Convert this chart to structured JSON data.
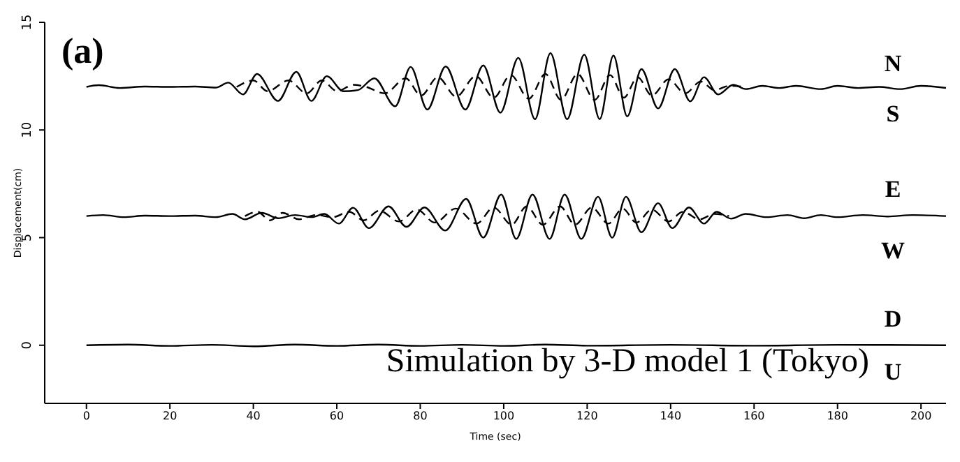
{
  "chart_data": {
    "type": "line",
    "xlabel": "Time (sec)",
    "ylabel": "Displacement(cm)",
    "xlim": [
      -10,
      206
    ],
    "xticks": [
      0,
      20,
      40,
      60,
      80,
      100,
      120,
      140,
      160,
      180,
      200
    ],
    "ylim": [
      -2.7,
      15
    ],
    "yticks": [
      0,
      5,
      10,
      15
    ],
    "series": [
      {
        "color": "#000000",
        "line_style": "solid",
        "x": [
          0,
          3,
          8,
          14,
          20,
          26,
          31,
          34,
          37.5,
          40.9,
          45.9,
          50.3,
          53.9,
          57.6,
          61.6,
          65,
          69,
          74,
          77.7,
          81.7,
          86.1,
          90.8,
          95.1,
          99.2,
          103.5,
          107.5,
          111.2,
          115.2,
          119.3,
          123,
          126.3,
          129.6,
          133,
          137,
          141,
          144.7,
          148,
          151.4,
          155,
          158,
          162,
          166,
          170,
          176,
          180,
          185,
          190,
          195,
          200,
          206
        ],
        "values": [
          12.0,
          12.08,
          11.95,
          12.02,
          12.0,
          12.02,
          11.97,
          12.2,
          11.65,
          12.6,
          11.35,
          12.7,
          11.35,
          12.5,
          11.8,
          11.85,
          12.4,
          11.1,
          12.93,
          10.95,
          12.95,
          10.95,
          13.0,
          10.8,
          13.35,
          10.5,
          13.57,
          10.5,
          13.5,
          10.5,
          13.46,
          10.63,
          12.83,
          11.0,
          12.83,
          11.33,
          12.45,
          11.65,
          12.1,
          11.9,
          12.05,
          11.95,
          12.05,
          11.9,
          12.05,
          11.95,
          12.0,
          11.9,
          12.05,
          11.95
        ]
      },
      {
        "color": "#000000",
        "line_style": "dashed",
        "x": [
          36,
          40,
          43.4,
          48.4,
          52.8,
          56.4,
          60.1,
          64,
          67,
          71.5,
          76.5,
          80.2,
          84.2,
          88.6,
          93.3,
          97.6,
          101.7,
          106,
          110,
          113.7,
          117.7,
          121.8,
          125.5,
          128.8,
          132.1,
          135.5,
          139.5,
          143.5,
          147.2,
          150.5,
          154,
          158
        ],
        "values": [
          12.0,
          12.3,
          11.8,
          12.3,
          11.7,
          12.3,
          11.8,
          12.1,
          12.0,
          11.7,
          12.4,
          11.6,
          12.45,
          11.55,
          12.5,
          11.5,
          12.55,
          11.45,
          12.6,
          11.4,
          12.6,
          11.4,
          12.55,
          11.5,
          12.45,
          11.6,
          12.35,
          11.7,
          12.25,
          11.85,
          12.05,
          12.0
        ]
      },
      {
        "color": "#000000",
        "line_style": "solid",
        "x": [
          0,
          4,
          9,
          14,
          20,
          26,
          31,
          35,
          38,
          42,
          46,
          50,
          54,
          57,
          60.5,
          63.9,
          67.7,
          72.4,
          76.7,
          81,
          86,
          91,
          95.1,
          99.4,
          103,
          106.9,
          111,
          114.6,
          118.6,
          122.6,
          126,
          129.3,
          133,
          137,
          140.4,
          144.4,
          148,
          151,
          154.5,
          158,
          163,
          168,
          172,
          176,
          180,
          186,
          192,
          198,
          206
        ],
        "values": [
          6.0,
          6.05,
          5.95,
          6.02,
          6.0,
          6.02,
          5.95,
          6.1,
          5.85,
          6.15,
          5.9,
          6.05,
          5.95,
          6.1,
          5.65,
          6.39,
          5.44,
          6.45,
          5.5,
          6.4,
          5.33,
          6.8,
          5.0,
          7.0,
          4.94,
          7.0,
          4.94,
          7.0,
          4.94,
          6.9,
          5.0,
          6.9,
          5.25,
          6.6,
          5.44,
          6.4,
          5.65,
          6.2,
          5.88,
          6.1,
          5.95,
          6.05,
          5.9,
          6.05,
          5.95,
          6.05,
          5.98,
          6.05,
          6.0
        ]
      },
      {
        "color": "#000000",
        "line_style": "dashed",
        "x": [
          38,
          41,
          44,
          47,
          51,
          55,
          59,
          63,
          66.4,
          70.2,
          74.9,
          79.2,
          83.5,
          88.5,
          93.5,
          97.6,
          101.9,
          105.5,
          109.4,
          113.5,
          117.1,
          121.1,
          125.1,
          128.5,
          131.8,
          135.5,
          139.5,
          142.9,
          146.9,
          150.5,
          154
        ],
        "values": [
          6.0,
          6.2,
          5.8,
          6.15,
          5.85,
          6.05,
          5.95,
          6.2,
          5.8,
          6.25,
          5.75,
          6.3,
          5.7,
          6.35,
          5.65,
          6.4,
          5.6,
          6.45,
          5.6,
          6.45,
          5.6,
          6.4,
          5.65,
          6.35,
          5.7,
          6.3,
          5.75,
          6.2,
          5.85,
          6.1,
          6.0
        ]
      },
      {
        "color": "#000000",
        "line_style": "solid",
        "x": [
          0,
          10,
          20,
          30,
          40,
          50,
          60,
          70,
          80,
          90,
          100,
          110,
          120,
          140,
          160,
          180,
          206
        ],
        "values": [
          0,
          0.03,
          -0.03,
          0.02,
          -0.05,
          0.03,
          -0.03,
          0.03,
          -0.03,
          0.02,
          -0.03,
          0.03,
          -0.02,
          0.02,
          -0.02,
          0.02,
          0
        ]
      }
    ],
    "annotations": [
      "(a)",
      "Simulation by 3-D model 1 (Tokyo)",
      "N",
      "S",
      "E",
      "W",
      "D",
      "U"
    ]
  }
}
